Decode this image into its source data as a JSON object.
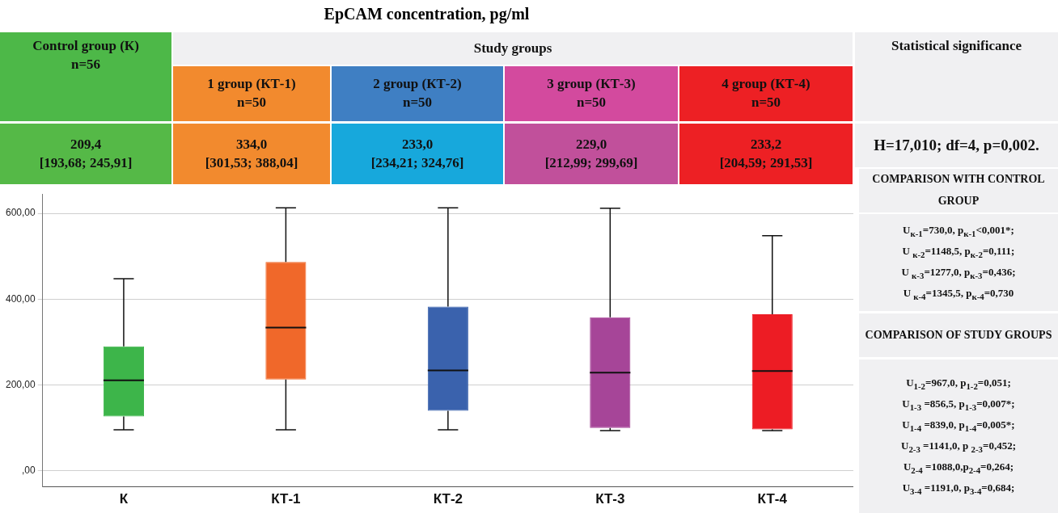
{
  "chart_data": {
    "type": "box",
    "title": "EpCAM concentration, pg/ml",
    "categories": [
      "К",
      "КТ-1",
      "КТ-2",
      "КТ-3",
      "КТ-4"
    ],
    "colors": [
      "#3db54a",
      "#f0682a",
      "#3a62ad",
      "#a64598",
      "#ed1c24"
    ],
    "boxes": [
      {
        "low": 96,
        "q1": 127,
        "median": 211,
        "q3": 290,
        "high": 448
      },
      {
        "low": 96,
        "q1": 213,
        "median": 334,
        "q3": 487,
        "high": 613
      },
      {
        "low": 96,
        "q1": 140,
        "median": 234,
        "q3": 383,
        "high": 613
      },
      {
        "low": 94,
        "q1": 100,
        "median": 229,
        "q3": 358,
        "high": 612
      },
      {
        "low": 94,
        "q1": 97,
        "median": 233,
        "q3": 365,
        "high": 548
      }
    ],
    "ylim": [
      -37,
      645
    ],
    "yticks": [
      {
        "value": 0,
        "label": ",00"
      },
      {
        "value": 200,
        "label": "200,00"
      },
      {
        "value": 400,
        "label": "400,00"
      },
      {
        "value": 600,
        "label": "600,00"
      }
    ],
    "grid": "y",
    "annotations": [
      "Control group (К)",
      "n=56",
      "Study groups",
      "1 group (КТ-1)",
      "n=50",
      "2 group (КТ-2)",
      "n=50",
      "3 group (КТ-3)",
      "n=50",
      "4 group (КТ-4)",
      "n=50",
      "209,4",
      "[193,68; 245,91]",
      "334,0",
      "[301,53; 388,04]",
      "233,0",
      "[234,21; 324,76]",
      "229,0",
      "[212,99; 299,69]",
      "233,2",
      "[204,59; 291,53]",
      "Statistical significance",
      "H=17,010; df=4, p=0,002.",
      "COMPARISON WITH CONTROL GROUP",
      "U$_{к-1}$=730,0, p$_{к-1}$<0,001*;",
      "U $_{к-2}$=1148,5, p$_{к-2}$=0,111;",
      "U $_{к-3}$=1277,0, p$_{к-3}$=0,436;",
      "U $_{к-4}$=1345,5, p$_{к-4}$=0,730",
      "COMPARISON OF STUDY GROUPS",
      "U$_{1-2}$=967,0, p$_{1-2}$=0,051;",
      "U$_{1-3}$ =856,5, p$_{1-3}$=0,007*;",
      "U$_{1-4}$ =839,0, p$_{1-4}$=0,005*;",
      "U$_{2-3}$ =1141,0, p $_{2-3}$=0,452;",
      "U$_{2-4}$ =1088,0,p$_{2-4}$=0,264;",
      "U$_{3-4}$ =1191,0, p$_{3-4}$=0,684;"
    ]
  }
}
